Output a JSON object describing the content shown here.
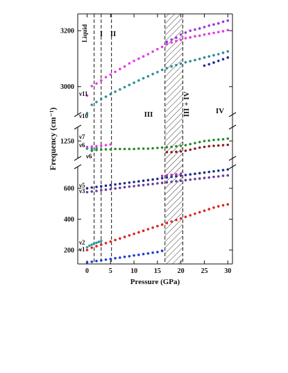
{
  "chart_data": {
    "type": "scatter",
    "xlabel": "Pressure (GPa)",
    "ylabel": "Frequency (cm⁻¹)",
    "xlim": [
      -2,
      31
    ],
    "x_ticks": [
      0,
      5,
      10,
      15,
      20,
      25,
      30
    ],
    "y_breaks": [
      {
        "range": [
          2900,
          3260
        ],
        "ticks": [
          3000,
          3200
        ]
      },
      {
        "range": [
          1200,
          1290
        ],
        "ticks": [
          1250
        ]
      },
      {
        "range": [
          110,
          740
        ],
        "ticks": [
          200,
          400,
          600
        ]
      }
    ],
    "phase_boundaries_gpa": [
      1.5,
      3.0,
      5.2,
      16.6,
      20.4
    ],
    "coexistence_region_gpa": [
      16.6,
      20.4
    ],
    "regions": [
      "Liquid",
      "I",
      "II",
      "III",
      "III + IV",
      "IV"
    ],
    "mode_labels": [
      "ν11",
      "ν10",
      "ν7",
      "ν6",
      "ν6",
      "ν5",
      "ν3",
      "ν2",
      "ν1"
    ],
    "series": [
      {
        "color": "#e638e6",
        "x": [
          0,
          1,
          2,
          3,
          4,
          5,
          6,
          7,
          8,
          9,
          10,
          11,
          12,
          13,
          14,
          15,
          16,
          17,
          18,
          19,
          20,
          21,
          22,
          23,
          24,
          25,
          26,
          27,
          28,
          29,
          30
        ],
        "y": [
          2968,
          3002,
          3011,
          3022,
          3034,
          3043,
          3053,
          3063,
          3072,
          3083,
          3092,
          3100,
          3108,
          3116,
          3125,
          3134,
          3142,
          3152,
          3158,
          3163,
          3167,
          3173,
          3176,
          3180,
          3182,
          3186,
          3189,
          3192,
          3195,
          3198,
          3202
        ]
      },
      {
        "color": "#9b30e0",
        "x": [
          17,
          18,
          19,
          20,
          21,
          22,
          23,
          24,
          25,
          26,
          27,
          28,
          29,
          30
        ],
        "y": [
          3160,
          3168,
          3175,
          3186,
          3193,
          3200,
          3204,
          3208,
          3213,
          3218,
          3222,
          3226,
          3232,
          3236
        ]
      },
      {
        "color": "#2e8b9a",
        "x": [
          0,
          1,
          2,
          3,
          4,
          5,
          6,
          7,
          8,
          9,
          10,
          11,
          12,
          13,
          14,
          15,
          16,
          17,
          18,
          19,
          20,
          21,
          22,
          23,
          24,
          25,
          26,
          27,
          28,
          29,
          30
        ],
        "y": [
          2905,
          2935,
          2945,
          2956,
          2964,
          2973,
          2982,
          2990,
          2998,
          3006,
          3014,
          3022,
          3030,
          3037,
          3045,
          3052,
          3060,
          3066,
          3072,
          3077,
          3082,
          3087,
          3091,
          3095,
          3099,
          3104,
          3108,
          3112,
          3116,
          3121,
          3126
        ]
      },
      {
        "color": "#1c2d8c",
        "x": [
          25,
          26,
          27,
          28,
          29,
          30
        ],
        "y": [
          3075,
          3080,
          3086,
          3092,
          3098,
          3104
        ]
      },
      {
        "color": "#e638e6",
        "x": [
          0,
          1,
          2,
          3,
          4,
          5
        ],
        "y": [
          1233,
          1234,
          1235,
          1236,
          1238,
          1240
        ]
      },
      {
        "color": "#2e8b9a",
        "x": [
          0,
          1,
          2
        ],
        "y": [
          1228,
          1228,
          1229
        ]
      },
      {
        "color": "#228b22",
        "x": [
          1,
          2,
          3,
          4,
          5,
          6,
          7,
          8,
          9,
          10,
          11,
          12,
          13,
          14,
          15,
          16,
          17,
          18,
          19,
          20,
          21,
          22,
          23,
          24,
          25,
          26,
          27,
          28,
          29,
          30
        ],
        "y": [
          1222,
          1224,
          1225,
          1226,
          1226,
          1227,
          1227,
          1227,
          1227,
          1227,
          1228,
          1228,
          1228,
          1229,
          1230,
          1231,
          1232,
          1233,
          1235,
          1236,
          1238,
          1241,
          1244,
          1247,
          1250,
          1251,
          1253,
          1254,
          1255,
          1257
        ]
      },
      {
        "color": "#8b1a1a",
        "x": [
          17,
          18,
          19,
          20,
          21,
          22,
          23,
          24,
          25,
          26,
          27,
          28,
          29,
          30
        ],
        "y": [
          1218,
          1218,
          1219,
          1220,
          1222,
          1225,
          1228,
          1231,
          1233,
          1235,
          1236,
          1237,
          1238,
          1239
        ]
      },
      {
        "color": "#1c2d8c",
        "x": [
          0,
          1,
          2,
          3,
          4,
          5,
          6,
          7,
          8,
          9,
          10,
          11,
          12,
          13,
          14,
          15,
          16,
          17,
          18,
          19,
          20,
          21,
          22,
          23,
          24,
          25,
          26,
          27,
          28,
          29,
          30
        ],
        "y": [
          600,
          605,
          609,
          613,
          617,
          621,
          625,
          629,
          633,
          637,
          641,
          645,
          649,
          653,
          657,
          661,
          665,
          670,
          674,
          678,
          682,
          686,
          690,
          694,
          698,
          702,
          706,
          710,
          714,
          718,
          722
        ]
      },
      {
        "color": "#b030b0",
        "x": [
          16,
          17,
          18,
          19,
          20
        ],
        "y": [
          680,
          684,
          687,
          690,
          694
        ]
      },
      {
        "color": "#6a3a9a",
        "x": [
          0,
          1,
          2,
          3,
          4,
          5,
          6,
          7,
          8,
          9,
          10,
          11,
          12,
          13,
          14,
          15,
          16,
          17,
          18,
          19,
          20,
          21,
          22,
          23,
          24,
          25,
          26,
          27,
          28,
          29,
          30
        ],
        "y": [
          575,
          579,
          583,
          587,
          591,
          595,
          599,
          603,
          607,
          611,
          614,
          618,
          621,
          625,
          628,
          632,
          635,
          639,
          642,
          646,
          649,
          653,
          656,
          660,
          663,
          667,
          670,
          674,
          677,
          681,
          684
        ]
      },
      {
        "color": "#2e9a9a",
        "x": [
          0,
          0.5,
          1,
          1.5,
          2,
          2.5,
          3
        ],
        "y": [
          218,
          228,
          235,
          242,
          247,
          253,
          258
        ]
      },
      {
        "color": "#e02020",
        "x": [
          0,
          1,
          2,
          3,
          4,
          5,
          6,
          7,
          8,
          9,
          10,
          11,
          12,
          13,
          14,
          15,
          16,
          17,
          18,
          19,
          20,
          21,
          22,
          23,
          24,
          25,
          26,
          27,
          28,
          29,
          30
        ],
        "y": [
          200,
          215,
          225,
          235,
          245,
          255,
          265,
          275,
          285,
          295,
          305,
          315,
          325,
          335,
          345,
          355,
          365,
          375,
          385,
          395,
          405,
          415,
          425,
          435,
          445,
          455,
          465,
          475,
          483,
          490,
          496
        ]
      },
      {
        "color": "#1a3ad0",
        "x": [
          0,
          1,
          2,
          3,
          4,
          5,
          6,
          7,
          8,
          9,
          10,
          11,
          12,
          13,
          14,
          15,
          16
        ],
        "y": [
          120,
          124,
          129,
          133,
          138,
          142,
          147,
          151,
          156,
          160,
          165,
          169,
          174,
          178,
          183,
          187,
          195
        ]
      }
    ]
  }
}
